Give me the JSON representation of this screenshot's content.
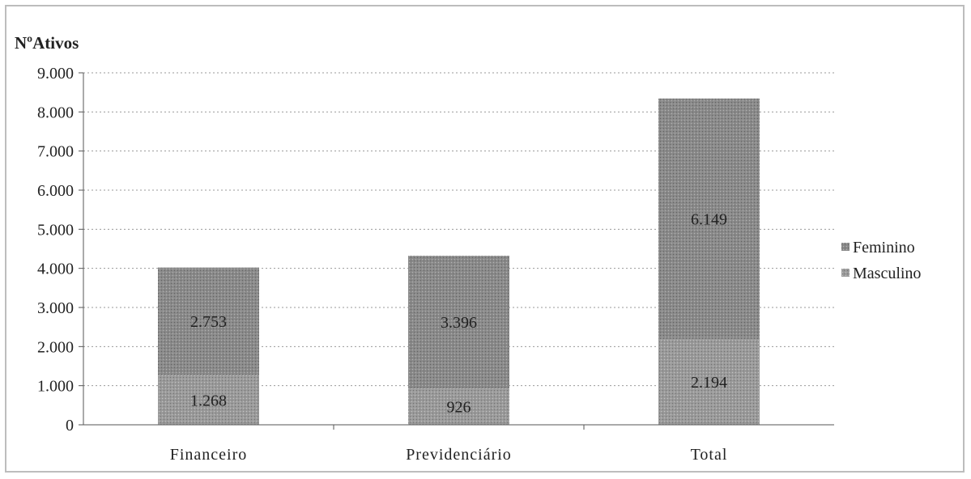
{
  "chart_data": {
    "type": "bar",
    "stacked": true,
    "title": "",
    "ylabel": "NºAtivos",
    "xlabel": "",
    "ylim": [
      0,
      9000
    ],
    "yticks": [
      0,
      1000,
      2000,
      3000,
      4000,
      5000,
      6000,
      7000,
      8000,
      9000
    ],
    "ytick_labels": [
      "0",
      "1.000",
      "2.000",
      "3.000",
      "4.000",
      "5.000",
      "6.000",
      "7.000",
      "8.000",
      "9.000"
    ],
    "categories": [
      "Financeiro",
      "Previdenciário",
      "Total"
    ],
    "series": [
      {
        "name": "Masculino",
        "values": [
          1268,
          926,
          2194
        ],
        "labels": [
          "1.268",
          "926",
          "2.194"
        ],
        "color": "#9a9a9a"
      },
      {
        "name": "Feminino",
        "values": [
          2753,
          3396,
          6149
        ],
        "labels": [
          "2.753",
          "3.396",
          "6.149"
        ],
        "color": "#8a8a8a"
      }
    ],
    "legend_order": [
      "Feminino",
      "Masculino"
    ],
    "legend_position": "right",
    "grid": true,
    "colors": {
      "bar_top": "#8c8c8c",
      "bar_bottom": "#9e9e9e",
      "grid": "#9a9a9a",
      "axis": "#555555"
    }
  }
}
